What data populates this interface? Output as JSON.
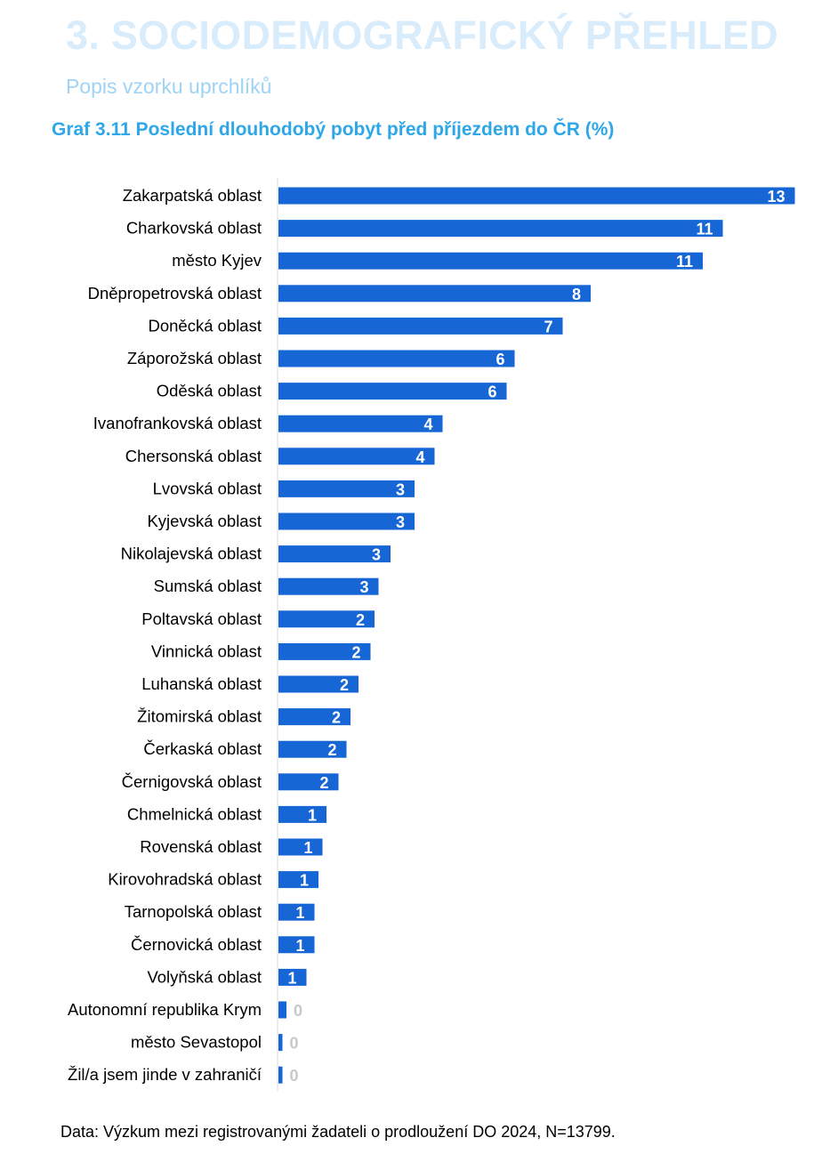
{
  "header": {
    "section_title": "3. SOCIODEMOGRAFICKÝ PŘEHLED",
    "subtitle": "Popis vzorku uprchlíků"
  },
  "colors": {
    "section_title": "#d8ecfb",
    "subtitle": "#9fd3f5",
    "chart_title": "#2ea7e8",
    "bar": "#1666d5",
    "axis": "#d9d9d9",
    "value_label": "#ffffff",
    "zero_label": "#c8c8c8",
    "category_label": "#000000"
  },
  "chart_data": {
    "type": "bar",
    "orientation": "horizontal",
    "title": "Graf 3.11 Poslední dlouhodobý pobyt před příjezdem do ČR (%)",
    "categories": [
      "Zakarpatská oblast",
      "Charkovská oblast",
      "město Kyjev",
      "Dněpropetrovská oblast",
      "Doněcká oblast",
      "Záporožská oblast",
      "Oděská oblast",
      "Ivanofrankovská oblast",
      "Chersonská oblast",
      "Lvovská oblast",
      "Kyjevská oblast",
      "Nikolajevská oblast",
      "Sumská oblast",
      "Poltavská oblast",
      "Vinnická oblast",
      "Luhanská oblast",
      "Žitomirská oblast",
      "Čerkaská oblast",
      "Černigovská oblast",
      "Chmelnická oblast",
      "Rovenská oblast",
      "Kirovohradská oblast",
      "Tarnopolská oblast",
      "Černovická oblast",
      "Volyňská oblast",
      "Autonomní republika Krym",
      "město Sevastopol",
      "Žil/a jsem jinde v zahraničí"
    ],
    "values": [
      12.9,
      11.1,
      10.6,
      7.8,
      7.1,
      5.9,
      5.7,
      4.1,
      3.9,
      3.4,
      3.4,
      2.8,
      2.5,
      2.4,
      2.3,
      2.0,
      1.8,
      1.7,
      1.5,
      1.2,
      1.1,
      1.0,
      0.9,
      0.9,
      0.7,
      0.2,
      0.1,
      0.1
    ],
    "labels": [
      "13",
      "11",
      "11",
      "8",
      "7",
      "6",
      "6",
      "4",
      "4",
      "3",
      "3",
      "3",
      "3",
      "2",
      "2",
      "2",
      "2",
      "2",
      "2",
      "1",
      "1",
      "1",
      "1",
      "1",
      "1",
      "0",
      "0",
      "0"
    ],
    "xlim": [
      0,
      13
    ]
  },
  "footnote": "Data: Výzkum mezi registrovanými žadateli o prodloužení DO 2024, N=13799."
}
